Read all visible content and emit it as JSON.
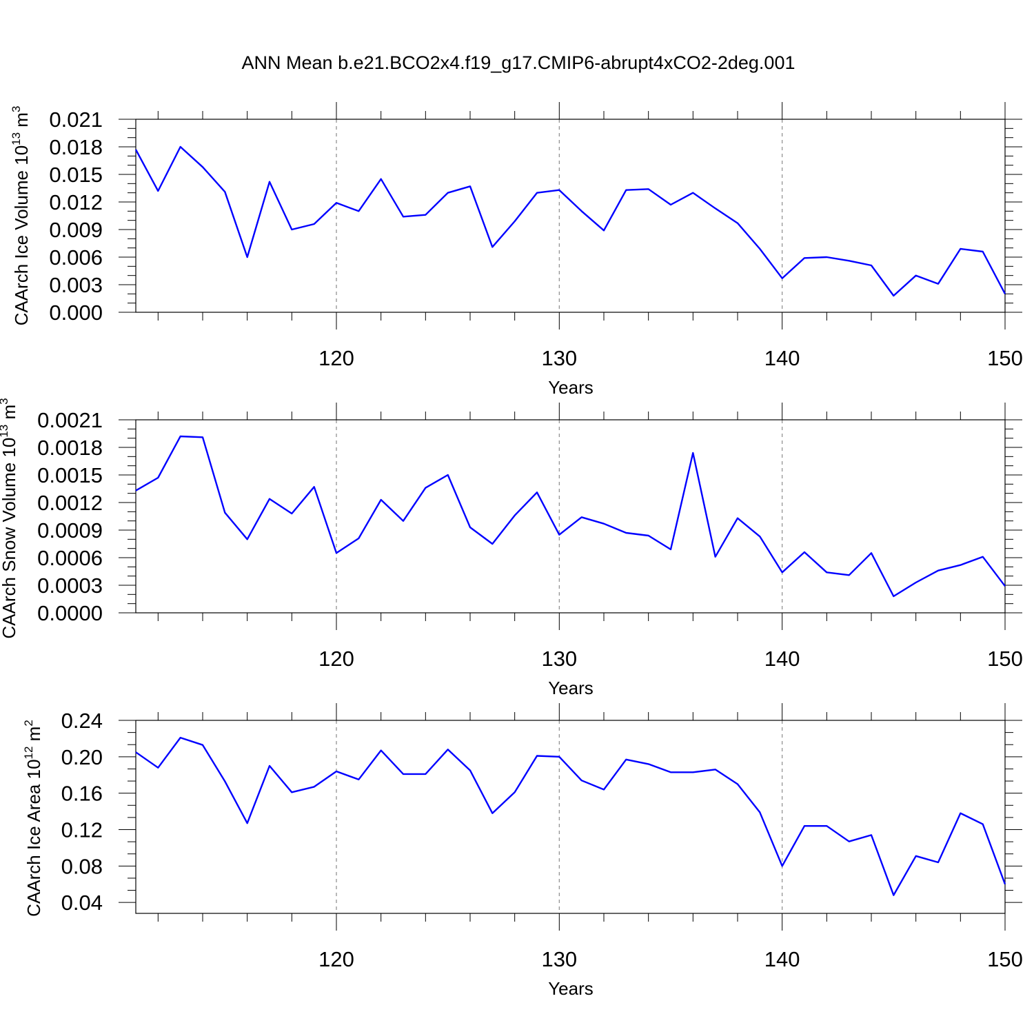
{
  "title": "ANN Mean b.e21.BCO2x4.f19_g17.CMIP6-abrupt4xCO2-2deg.001",
  "chart_data": [
    {
      "type": "line",
      "ylabel": "CAArch Ice Volume",
      "ylabel_unit_base": "10",
      "ylabel_unit_exp": "13",
      "ylabel_unit_m": "m",
      "ylabel_unit_m_exp": "3",
      "xlabel": "Years",
      "xlim": [
        111,
        150
      ],
      "ylim": [
        0,
        0.021
      ],
      "yticks": [
        "0.000",
        "0.003",
        "0.006",
        "0.009",
        "0.012",
        "0.015",
        "0.018",
        "0.021"
      ],
      "ytick_values": [
        0,
        0.003,
        0.006,
        0.009,
        0.012,
        0.015,
        0.018,
        0.021
      ],
      "xticks": [
        "120",
        "130",
        "140",
        "150"
      ],
      "xtick_values": [
        120,
        130,
        140,
        150
      ],
      "grid_x": [
        120,
        130,
        140
      ],
      "color": "#0000ff",
      "x": [
        111,
        112,
        113,
        114,
        115,
        116,
        117,
        118,
        119,
        120,
        121,
        122,
        123,
        124,
        125,
        126,
        127,
        128,
        129,
        130,
        131,
        132,
        133,
        134,
        135,
        136,
        137,
        138,
        139,
        140,
        141,
        142,
        143,
        144,
        145,
        146,
        147,
        148,
        149,
        150
      ],
      "values": [
        0.0177,
        0.0132,
        0.018,
        0.0158,
        0.0131,
        0.006,
        0.0142,
        0.009,
        0.0096,
        0.0119,
        0.011,
        0.0145,
        0.0104,
        0.0106,
        0.013,
        0.0137,
        0.0071,
        0.0099,
        0.013,
        0.0133,
        0.011,
        0.0089,
        0.0133,
        0.0134,
        0.0117,
        0.013,
        0.0113,
        0.0097,
        0.0069,
        0.0037,
        0.0059,
        0.006,
        0.0056,
        0.0051,
        0.0018,
        0.004,
        0.0031,
        0.0069,
        0.0066,
        0.002
      ]
    },
    {
      "type": "line",
      "ylabel": "CAArch Snow Volume",
      "ylabel_unit_base": "10",
      "ylabel_unit_exp": "13",
      "ylabel_unit_m": "m",
      "ylabel_unit_m_exp": "3",
      "xlabel": "Years",
      "xlim": [
        111,
        150
      ],
      "ylim": [
        0,
        0.0021
      ],
      "yticks": [
        "0.0000",
        "0.0003",
        "0.0006",
        "0.0009",
        "0.0012",
        "0.0015",
        "0.0018",
        "0.0021"
      ],
      "ytick_values": [
        0,
        0.0003,
        0.0006,
        0.0009,
        0.0012,
        0.0015,
        0.0018,
        0.0021
      ],
      "xticks": [
        "120",
        "130",
        "140",
        "150"
      ],
      "xtick_values": [
        120,
        130,
        140,
        150
      ],
      "grid_x": [
        120,
        130,
        140
      ],
      "color": "#0000ff",
      "x": [
        111,
        112,
        113,
        114,
        115,
        116,
        117,
        118,
        119,
        120,
        121,
        122,
        123,
        124,
        125,
        126,
        127,
        128,
        129,
        130,
        131,
        132,
        133,
        134,
        135,
        136,
        137,
        138,
        139,
        140,
        141,
        142,
        143,
        144,
        145,
        146,
        147,
        148,
        149,
        150
      ],
      "values": [
        0.00133,
        0.00147,
        0.00192,
        0.00191,
        0.00109,
        0.0008,
        0.00124,
        0.00108,
        0.00137,
        0.00065,
        0.00081,
        0.00123,
        0.001,
        0.00136,
        0.0015,
        0.00093,
        0.00075,
        0.00106,
        0.00131,
        0.00085,
        0.00104,
        0.00097,
        0.00087,
        0.00084,
        0.00069,
        0.00174,
        0.00061,
        0.00103,
        0.00083,
        0.00044,
        0.00066,
        0.00044,
        0.00041,
        0.00065,
        0.00018,
        0.00033,
        0.00046,
        0.00052,
        0.00061,
        0.00029
      ]
    },
    {
      "type": "line",
      "ylabel": "CAArch Ice Area",
      "ylabel_unit_base": "10",
      "ylabel_unit_exp": "12",
      "ylabel_unit_m": "m",
      "ylabel_unit_m_exp": "2",
      "xlabel": "Years",
      "xlim": [
        111,
        150
      ],
      "ylim": [
        0.028,
        0.24
      ],
      "yticks": [
        "0.04",
        "0.08",
        "0.12",
        "0.16",
        "0.20",
        "0.24"
      ],
      "ytick_values": [
        0.04,
        0.08,
        0.12,
        0.16,
        0.2,
        0.24
      ],
      "xticks": [
        "120",
        "130",
        "140",
        "150"
      ],
      "xtick_values": [
        120,
        130,
        140,
        150
      ],
      "grid_x": [
        120,
        130,
        140
      ],
      "color": "#0000ff",
      "x": [
        111,
        112,
        113,
        114,
        115,
        116,
        117,
        118,
        119,
        120,
        121,
        122,
        123,
        124,
        125,
        126,
        127,
        128,
        129,
        130,
        131,
        132,
        133,
        134,
        135,
        136,
        137,
        138,
        139,
        140,
        141,
        142,
        143,
        144,
        145,
        146,
        147,
        148,
        149,
        150
      ],
      "values": [
        0.205,
        0.188,
        0.221,
        0.213,
        0.173,
        0.127,
        0.19,
        0.161,
        0.167,
        0.184,
        0.175,
        0.207,
        0.181,
        0.181,
        0.208,
        0.185,
        0.138,
        0.161,
        0.201,
        0.2,
        0.174,
        0.164,
        0.197,
        0.192,
        0.183,
        0.183,
        0.186,
        0.17,
        0.139,
        0.08,
        0.124,
        0.124,
        0.107,
        0.114,
        0.048,
        0.091,
        0.084,
        0.138,
        0.126,
        0.06
      ]
    }
  ]
}
